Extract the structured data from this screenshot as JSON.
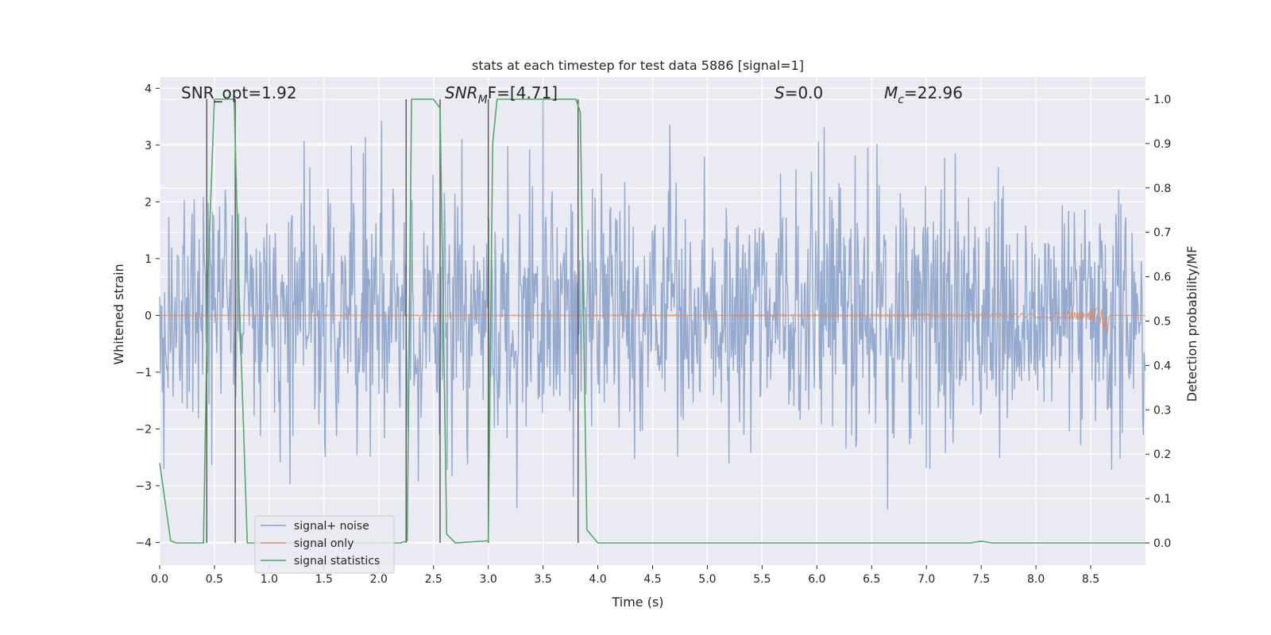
{
  "chart_data": {
    "type": "line",
    "title": "stats at each timestep for test data 5886 [signal=1]",
    "xlabel": "Time (s)",
    "ylabel_left": "Whitened strain",
    "ylabel_right": "Detection probability/MF",
    "xlim": [
      0,
      9.0
    ],
    "ylim_left": [
      -4.4,
      4.2
    ],
    "ylim_right": [
      -0.05,
      1.05
    ],
    "x_ticks": [
      "0.0",
      "0.5",
      "1.0",
      "1.5",
      "2.0",
      "2.5",
      "3.0",
      "3.5",
      "4.0",
      "4.5",
      "5.0",
      "5.5",
      "6.0",
      "6.5",
      "7.0",
      "7.5",
      "8.0",
      "8.5"
    ],
    "x_tick_values": [
      0,
      0.5,
      1,
      1.5,
      2,
      2.5,
      3,
      3.5,
      4,
      4.5,
      5,
      5.5,
      6,
      6.5,
      7,
      7.5,
      8,
      8.5
    ],
    "y_ticks_left": [
      "4",
      "3",
      "2",
      "1",
      "0",
      "−1",
      "−2",
      "−3",
      "−4"
    ],
    "y_tick_values_left": [
      4,
      3,
      2,
      1,
      0,
      -1,
      -2,
      -3,
      -4
    ],
    "y_ticks_right": [
      "1.0",
      "0.9",
      "0.8",
      "0.7",
      "0.6",
      "0.5",
      "0.4",
      "0.3",
      "0.2",
      "0.1",
      "0.0"
    ],
    "y_tick_values_right": [
      1.0,
      0.9,
      0.8,
      0.7,
      0.6,
      0.5,
      0.4,
      0.3,
      0.2,
      0.1,
      0.0
    ],
    "grid": true,
    "legend_position": "lower-left",
    "legend": [
      "signal+ noise",
      "signal only",
      "signal statistics"
    ],
    "annotations": {
      "snr_opt": "SNR_opt=1.92",
      "snr_mf_label": "SNR",
      "snr_mf_sub": "M",
      "snr_mf_value": "F=[4.71]",
      "s_label": "S",
      "s_value": "=0.0",
      "mc_label": "M",
      "mc_sub": "c",
      "mc_value": "=22.96"
    },
    "series": [
      {
        "name": "signal+ noise",
        "axis": "left",
        "color": "#4c72b0",
        "description_range": [
          -3.8,
          3.8
        ]
      },
      {
        "name": "signal only",
        "axis": "left",
        "color": "#dd8452",
        "chirp_peak_time": 8.65,
        "chirp_peak_amplitude": 0.45
      },
      {
        "name": "signal statistics",
        "axis": "right",
        "color": "#55a868",
        "x": [
          0.0,
          0.1,
          0.15,
          0.4,
          0.44,
          0.5,
          0.68,
          0.72,
          0.8,
          2.2,
          2.26,
          2.3,
          2.5,
          2.56,
          2.62,
          2.7,
          3.0,
          3.04,
          3.08,
          3.5,
          3.8,
          3.84,
          3.9,
          4.0,
          7.4,
          7.5,
          7.6,
          9.0
        ],
        "y": [
          0.18,
          0.005,
          0.0,
          0.0,
          0.6,
          1.0,
          1.0,
          0.6,
          0.0,
          0.0,
          0.005,
          1.0,
          1.0,
          0.98,
          0.02,
          0.0,
          0.005,
          0.9,
          1.0,
          1.0,
          1.0,
          0.97,
          0.03,
          0.0,
          0.0,
          0.004,
          0.0,
          0.0
        ]
      }
    ],
    "vertical_lines_x": [
      0.43,
      0.69,
      2.25,
      2.56,
      3.0,
      3.82
    ]
  }
}
